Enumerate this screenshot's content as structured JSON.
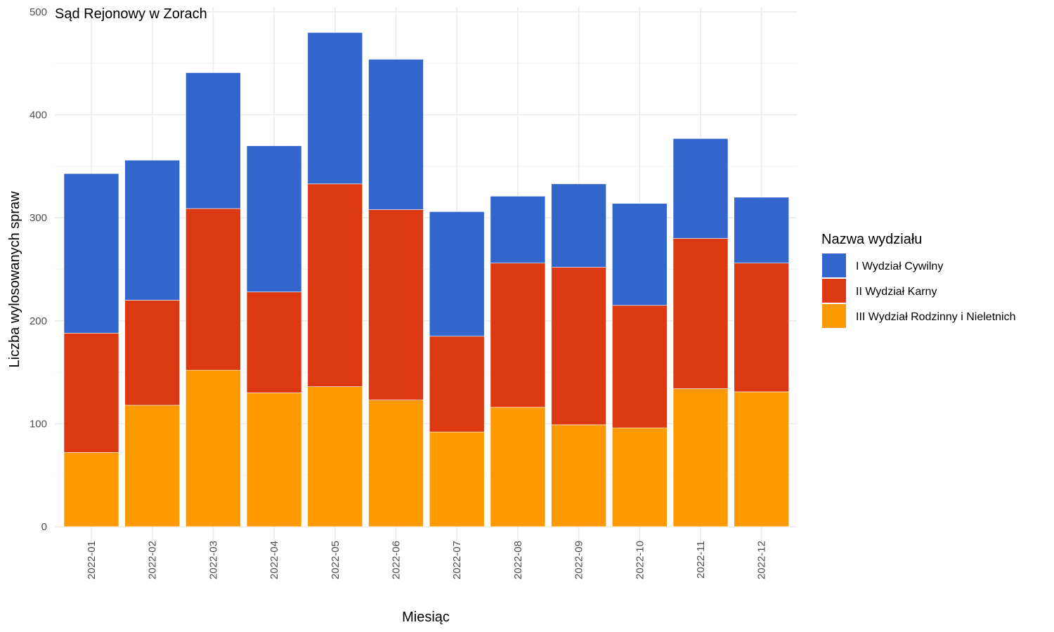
{
  "chart_data": {
    "type": "bar",
    "stacked": true,
    "title": "Sąd Rejonowy w Zorach",
    "xlabel": "Miesiąc",
    "ylabel": "Liczba wylosowanych spraw",
    "ylim": [
      0,
      500
    ],
    "yticks": [
      0,
      100,
      200,
      300,
      400,
      500
    ],
    "grid": true,
    "legend_position": "right",
    "legend_title": "Nazwa wydziału",
    "categories": [
      "2022-01",
      "2022-02",
      "2022-03",
      "2022-04",
      "2022-05",
      "2022-06",
      "2022-07",
      "2022-08",
      "2022-09",
      "2022-10",
      "2022-11",
      "2022-12"
    ],
    "series": [
      {
        "name": "I Wydział Cywilny",
        "color": "#3366cc",
        "values": [
          155,
          136,
          132,
          142,
          147,
          146,
          121,
          65,
          81,
          99,
          97,
          64
        ]
      },
      {
        "name": "II Wydział Karny",
        "color": "#dc3912",
        "values": [
          116,
          102,
          157,
          98,
          197,
          185,
          93,
          140,
          153,
          119,
          146,
          125
        ]
      },
      {
        "name": "III Wydział Rodzinny i Nieletnich",
        "color": "#ff9900",
        "values": [
          72,
          118,
          152,
          130,
          136,
          123,
          92,
          116,
          99,
          96,
          134,
          131
        ]
      }
    ]
  }
}
